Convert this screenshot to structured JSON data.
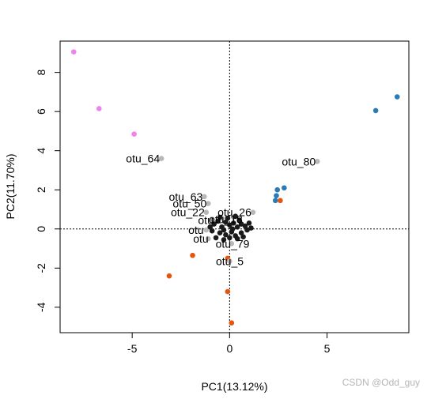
{
  "watermark": "CSDN @Odd_guy",
  "chart_data": {
    "type": "scatter",
    "title": "",
    "xlabel": "PC1(13.12%)",
    "ylabel": "PC2(11.70%)",
    "xlim": [
      -8.7,
      9.2
    ],
    "ylim": [
      -5.3,
      9.6
    ],
    "xticks": [
      -5,
      0,
      5
    ],
    "yticks": [
      -4,
      -2,
      0,
      2,
      4,
      6,
      8
    ],
    "reference_lines": {
      "x": 0,
      "y": 0,
      "style": "dotted"
    },
    "legend": "none",
    "colors": {
      "magenta": "#ee82ee",
      "blue": "#2c7bb6",
      "orange": "#e6550d",
      "gray": "#b8b8b8",
      "dark": "#1a1a1a"
    },
    "series": [
      {
        "color": "#ee82ee",
        "points": [
          [
            -8.0,
            9.05
          ],
          [
            -6.7,
            6.15
          ],
          [
            -4.9,
            4.85
          ]
        ]
      },
      {
        "color": "#2c7bb6",
        "points": [
          [
            8.6,
            6.75
          ],
          [
            7.5,
            6.05
          ],
          [
            2.8,
            2.1
          ],
          [
            2.45,
            2.0
          ],
          [
            2.4,
            1.7
          ],
          [
            2.35,
            1.45
          ]
        ]
      },
      {
        "color": "#e6550d",
        "points": [
          [
            2.6,
            1.45
          ],
          [
            -1.9,
            -1.35
          ],
          [
            -3.1,
            -2.4
          ],
          [
            -0.1,
            -1.5
          ],
          [
            -0.1,
            -3.2
          ],
          [
            0.1,
            -4.8
          ]
        ]
      },
      {
        "color": "#b8b8b8",
        "points": [
          [
            -3.5,
            3.6
          ],
          [
            4.5,
            3.45
          ],
          [
            -1.3,
            1.65
          ],
          [
            -1.1,
            1.3
          ],
          [
            -1.2,
            0.85
          ],
          [
            1.2,
            0.85
          ],
          [
            -0.9,
            0.5
          ],
          [
            -1.2,
            -0.05
          ],
          [
            -1.1,
            -0.5
          ],
          [
            0.1,
            -0.75
          ],
          [
            0.0,
            -1.65
          ],
          [
            -0.4,
            0.55
          ],
          [
            0.2,
            0.6
          ]
        ]
      },
      {
        "color": "#1a1a1a",
        "points": [
          [
            -0.8,
            0.25
          ],
          [
            -0.6,
            0.4
          ],
          [
            -0.4,
            0.1
          ],
          [
            -0.2,
            0.35
          ],
          [
            0.0,
            0.2
          ],
          [
            0.2,
            0.3
          ],
          [
            0.4,
            0.1
          ],
          [
            0.6,
            0.25
          ],
          [
            0.8,
            0.15
          ],
          [
            1.0,
            0.3
          ],
          [
            -0.9,
            -0.1
          ],
          [
            -0.5,
            -0.2
          ],
          [
            -0.2,
            -0.3
          ],
          [
            0.1,
            -0.15
          ],
          [
            0.3,
            -0.35
          ],
          [
            0.6,
            -0.2
          ],
          [
            0.9,
            -0.05
          ],
          [
            -0.7,
            -0.45
          ],
          [
            -0.3,
            -0.55
          ],
          [
            0.0,
            -0.45
          ],
          [
            0.4,
            -0.5
          ],
          [
            0.7,
            -0.4
          ],
          [
            -0.1,
            0.55
          ],
          [
            0.3,
            0.65
          ],
          [
            -0.5,
            0.6
          ],
          [
            1.1,
            0.05
          ],
          [
            -1.0,
            0.1
          ],
          [
            0.5,
            0.45
          ],
          [
            -0.3,
            -0.05
          ],
          [
            0.15,
            0.0
          ]
        ]
      }
    ],
    "annotations": [
      {
        "text": "otu_64",
        "x": -3.5,
        "y": 3.6,
        "anchor": "end"
      },
      {
        "text": "otu_80",
        "x": 4.5,
        "y": 3.45,
        "anchor": "end"
      },
      {
        "text": "otu_63",
        "x": -1.3,
        "y": 1.65,
        "anchor": "end"
      },
      {
        "text": "otu_50",
        "x": -1.1,
        "y": 1.3,
        "anchor": "end"
      },
      {
        "text": "otu_22",
        "x": -1.2,
        "y": 0.85,
        "anchor": "end"
      },
      {
        "text": "otu_26",
        "x": 1.2,
        "y": 0.85,
        "anchor": "end"
      },
      {
        "text": "otu_18",
        "x": 0.75,
        "y": 0.5,
        "anchor": "end"
      },
      {
        "text": "otu_79",
        "x": 1.1,
        "y": -0.75,
        "anchor": "end"
      },
      {
        "text": "otu_5",
        "x": 0.8,
        "y": -1.65,
        "anchor": "end"
      },
      {
        "text": "otu",
        "x": -0.75,
        "y": 0.45,
        "anchor": "end"
      },
      {
        "text": "otu",
        "x": -1.25,
        "y": -0.05,
        "anchor": "end"
      },
      {
        "text": "otu",
        "x": -1.0,
        "y": -0.5,
        "anchor": "end"
      }
    ]
  }
}
